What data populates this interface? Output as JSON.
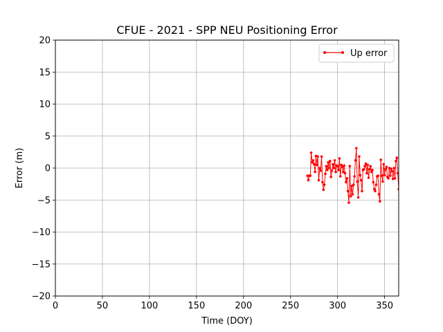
{
  "chart_data": {
    "type": "line",
    "title": "CFUE - 2021 - SPP NEU Positioning Error",
    "xlabel": "Time (DOY)",
    "ylabel": "Error (m)",
    "xlim": [
      0,
      365
    ],
    "ylim": [
      -20,
      20
    ],
    "xticks": [
      0,
      50,
      100,
      150,
      200,
      250,
      300,
      350
    ],
    "yticks": [
      -20,
      -15,
      -10,
      -5,
      0,
      5,
      10,
      15,
      20
    ],
    "grid": true,
    "legend_position": "top-right",
    "series": [
      {
        "name": "Up error",
        "color": "#ff0000",
        "marker": "circle",
        "x": [
          268,
          269,
          270,
          271,
          272,
          273,
          274,
          275,
          276,
          277,
          278,
          279,
          280,
          281,
          282,
          283,
          284,
          285,
          286,
          287,
          288,
          289,
          290,
          291,
          292,
          293,
          294,
          295,
          296,
          297,
          298,
          299,
          300,
          301,
          302,
          303,
          304,
          305,
          306,
          307,
          308,
          309,
          310,
          311,
          312,
          313,
          314,
          315,
          316,
          317,
          318,
          319,
          320,
          321,
          322,
          323,
          324,
          325,
          326,
          327,
          328,
          329,
          330,
          331,
          332,
          333,
          334,
          335,
          336,
          337,
          338,
          339,
          340,
          341,
          342,
          343,
          344,
          345,
          346,
          347,
          348,
          349,
          350,
          351,
          352,
          353,
          354,
          355,
          356,
          357,
          358,
          359,
          360,
          361,
          362,
          363,
          364,
          365
        ],
        "y": [
          -1.2,
          -1.9,
          -1.2,
          -1.2,
          2.4,
          0.9,
          1.2,
          0.6,
          -0.6,
          1.9,
          0.5,
          1.8,
          -1.9,
          0.0,
          -0.4,
          1.8,
          -2.2,
          -3.4,
          -2.6,
          -0.9,
          0.3,
          -0.3,
          0.9,
          0.0,
          1.1,
          -1.4,
          -0.4,
          0.6,
          0.0,
          1.2,
          -0.6,
          0.4,
          0.3,
          -0.3,
          1.5,
          -1.3,
          0.5,
          0.2,
          -0.6,
          0.4,
          -0.8,
          -2.2,
          -1.6,
          -3.6,
          -5.4,
          0.3,
          -4.4,
          -2.8,
          -4.1,
          -2.6,
          -1.3,
          1.2,
          3.1,
          -2.1,
          -4.6,
          1.8,
          -1.1,
          -1.9,
          -3.6,
          -0.3,
          -0.2,
          0.3,
          0.7,
          -0.8,
          0.5,
          -1.5,
          -0.2,
          0.3,
          -0.6,
          -0.3,
          -2.2,
          -3.3,
          -3.6,
          -2.6,
          -1.3,
          -1.2,
          -4.1,
          -5.2,
          1.3,
          -1.2,
          -2.1,
          0.6,
          -1.1,
          -0.2,
          0.2,
          -1.4,
          -1.6,
          0.0,
          -1.2,
          -0.1,
          -0.5,
          -1.7,
          0.0,
          -1.6,
          1.1,
          1.6,
          -0.8,
          -3.3
        ]
      }
    ]
  }
}
